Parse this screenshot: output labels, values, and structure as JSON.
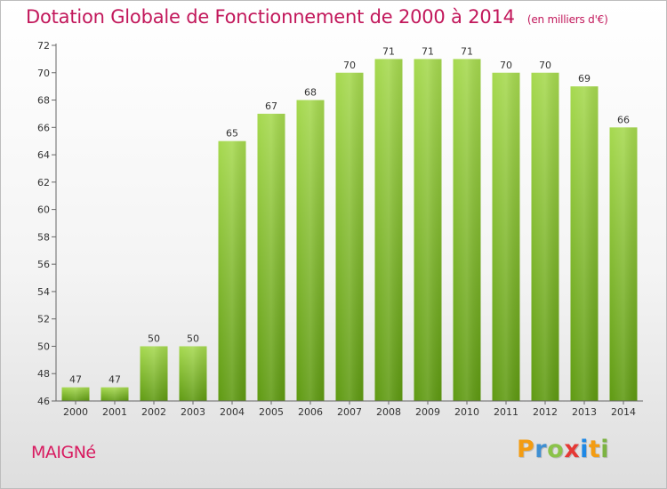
{
  "header": {
    "title": "Dotation Globale de Fonctionnement de 2000 à 2014",
    "subtitle": "(en milliers d'€)"
  },
  "footer": {
    "commune": "MAIGNé",
    "logo_letters": [
      "P",
      "r",
      "o",
      "x",
      "i",
      "t",
      "i"
    ],
    "logo_colors": [
      "#f39c12",
      "#3f8fd2",
      "#8bc34a",
      "#e53935",
      "#1e88e5",
      "#f39c12",
      "#7cb342"
    ]
  },
  "colors": {
    "bar_light": "#a6d94f",
    "bar_dark": "#5f9a12",
    "title": "#c2185b"
  },
  "chart_data": {
    "type": "bar",
    "title": "Dotation Globale de Fonctionnement de 2000 à 2014",
    "xlabel": "",
    "ylabel": "",
    "categories": [
      "2000",
      "2001",
      "2002",
      "2003",
      "2004",
      "2005",
      "2006",
      "2007",
      "2008",
      "2009",
      "2010",
      "2011",
      "2012",
      "2013",
      "2014"
    ],
    "values": [
      47,
      47,
      50,
      50,
      65,
      67,
      68,
      70,
      71,
      71,
      71,
      70,
      70,
      69,
      66
    ],
    "ylim": [
      46,
      72
    ],
    "yticks": [
      46,
      48,
      50,
      52,
      54,
      56,
      58,
      60,
      62,
      64,
      66,
      68,
      70,
      72
    ],
    "grid": false,
    "legend": "none"
  }
}
